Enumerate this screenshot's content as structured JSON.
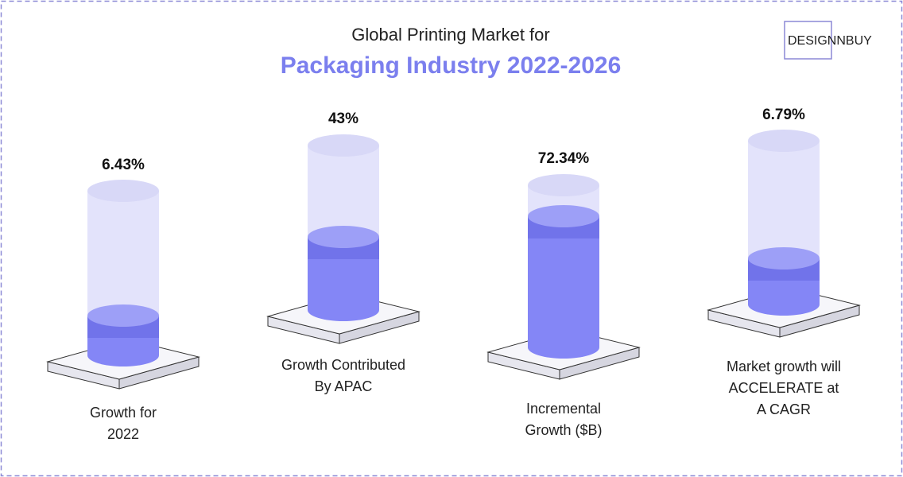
{
  "header": {
    "title_line1": "Global Printing Market for",
    "title_line2": "Packaging Industry 2022-2026",
    "logo": "DESIGNNBUY"
  },
  "items": [
    {
      "value": "6.43%",
      "label": [
        "Growth for",
        "2022"
      ]
    },
    {
      "value": "43%",
      "label": [
        "Growth Contributed",
        "By APAC"
      ]
    },
    {
      "value": "72.34%",
      "label": [
        "Incremental",
        "Growth ($B)"
      ]
    },
    {
      "value": "6.79%",
      "label": [
        "Market growth will",
        "ACCELERATE at",
        "A CAGR"
      ]
    }
  ]
}
